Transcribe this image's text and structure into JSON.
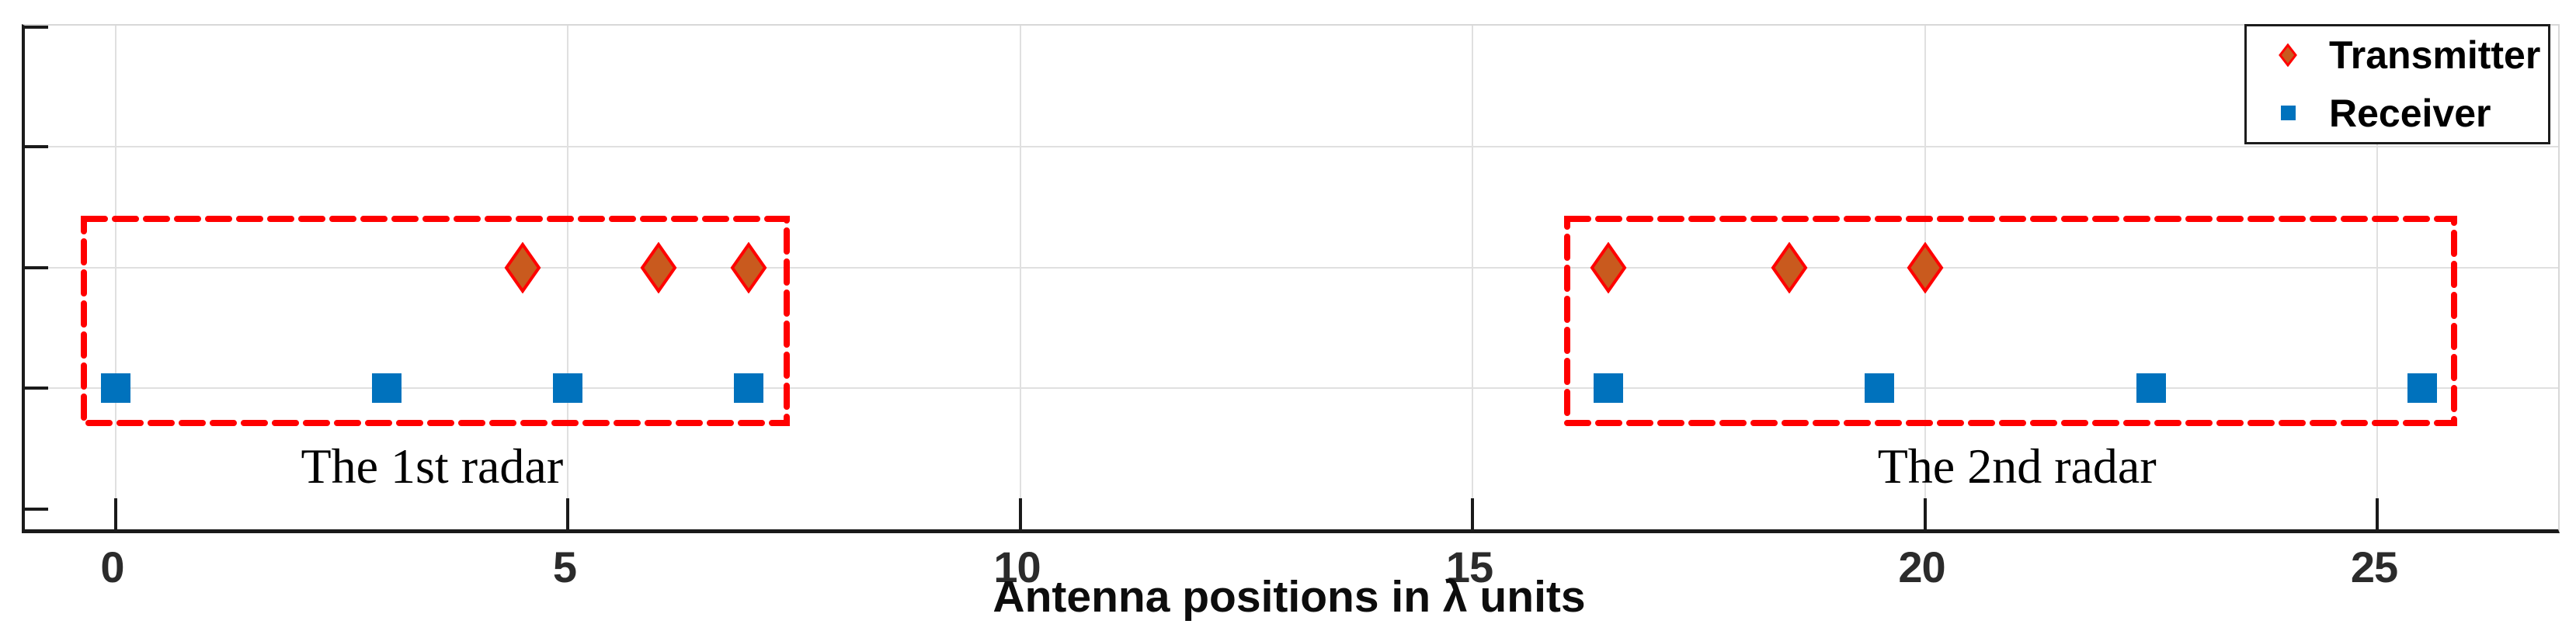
{
  "figure": {
    "background": "#ffffff",
    "axis_color": "#1a1a1a",
    "light_spine_color": "#d8d8d8",
    "grid_color": "#e0e0e0",
    "tick_label_color": "#2b2b2b"
  },
  "chart_data": {
    "type": "scatter",
    "title": "",
    "xlabel": "Antenna positions in λ units",
    "ylabel": "",
    "xlim": [
      -1,
      27
    ],
    "ylim": [
      0,
      2
    ],
    "grid": true,
    "x_tick_values": [
      0,
      5,
      10,
      15,
      20,
      25
    ],
    "x_tick_labels": [
      "0",
      "5",
      "10",
      "15",
      "20",
      "25"
    ],
    "y_tick_values": [
      0,
      0.5,
      1,
      1.5,
      2
    ],
    "y_tick_labels": [],
    "y_gridline_values": [
      0.5,
      1,
      1.5
    ],
    "legend_position": "top-right",
    "series": [
      {
        "name": "Transmitter",
        "marker": "diamond",
        "fill": "#C95A1E",
        "edge": "#FF0000",
        "y": 1.0,
        "x": [
          4.5,
          6,
          7,
          16.5,
          18.5,
          20
        ]
      },
      {
        "name": "Receiver",
        "marker": "square",
        "fill": "#0072BD",
        "edge": "#0072BD",
        "y": 0.5,
        "x": [
          0,
          3,
          5,
          7,
          16.5,
          19.5,
          22.5,
          25.5
        ]
      }
    ],
    "groups": [
      {
        "label": "The 1st radar",
        "box_x": [
          -0.35,
          7.42
        ],
        "box_y": [
          0.355,
          1.2
        ],
        "transmitters": [
          4.5,
          6,
          7
        ],
        "receivers": [
          0,
          3,
          5,
          7
        ]
      },
      {
        "label": "The 2nd radar",
        "box_x": [
          16.05,
          25.85
        ],
        "box_y": [
          0.355,
          1.2
        ],
        "transmitters": [
          16.5,
          18.5,
          20
        ],
        "receivers": [
          16.5,
          19.5,
          22.5,
          25.5
        ]
      }
    ],
    "box_color": "#FF0000",
    "box_style": "dashed"
  },
  "legend": {
    "items": [
      {
        "label": "Transmitter",
        "marker": "diamond"
      },
      {
        "label": "Receiver",
        "marker": "square"
      }
    ]
  }
}
